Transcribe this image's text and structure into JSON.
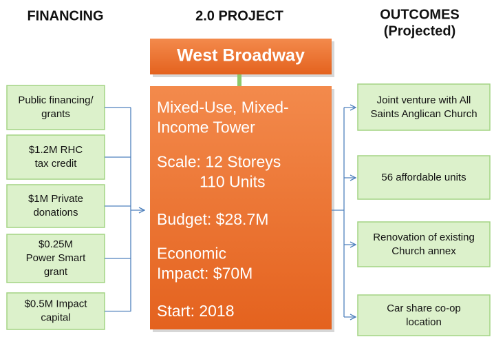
{
  "headers": {
    "financing": "FINANCING",
    "project": "2.0 PROJECT",
    "outcomes": [
      "OUTCOMES",
      "(Projected)"
    ]
  },
  "project": {
    "title": "West Broadway",
    "details": [
      [
        "Mixed-Use, Mixed-",
        "Income Tower"
      ],
      [
        "Scale:  12 Storeys",
        "110 Units"
      ],
      [
        "Budget: $28.7M"
      ],
      [
        "Economic",
        "Impact:  $70M"
      ],
      [
        "Start:  2018"
      ]
    ]
  },
  "financing": [
    [
      "Public financing/",
      "grants"
    ],
    [
      "$1.2M RHC",
      "tax credit"
    ],
    [
      "$1M Private",
      "donations"
    ],
    [
      "$0.25M",
      "Power Smart",
      "grant"
    ],
    [
      "$0.5M Impact",
      "capital"
    ]
  ],
  "outcomes": [
    [
      "Joint venture with All",
      "Saints Anglican Church"
    ],
    [
      "56 affordable units"
    ],
    [
      "Renovation of existing",
      "Church annex"
    ],
    [
      "Car share co-op",
      "location"
    ]
  ]
}
